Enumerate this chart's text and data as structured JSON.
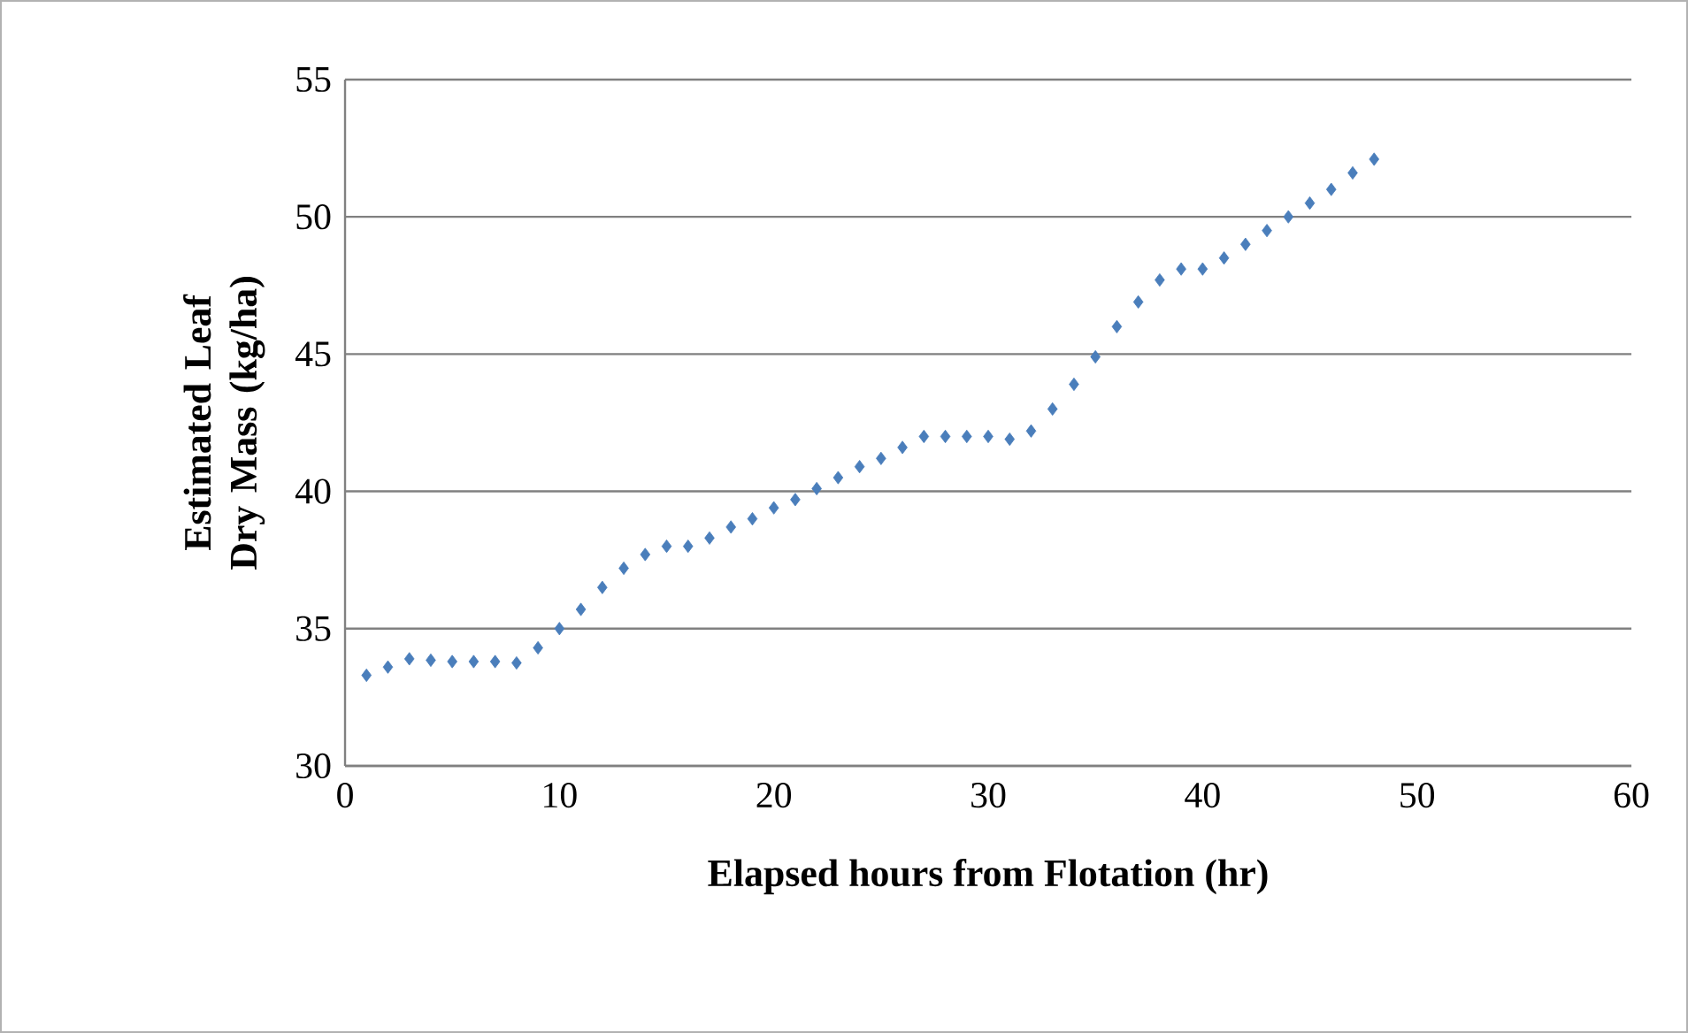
{
  "chart_data": {
    "type": "scatter",
    "xlabel": "Elapsed hours from Flotation (hr)",
    "ylabel": "Estimated Leaf Dry Mass (kg/ha)",
    "x": [
      1,
      2,
      3,
      4,
      5,
      6,
      7,
      8,
      9,
      10,
      11,
      12,
      13,
      14,
      15,
      16,
      17,
      18,
      19,
      20,
      21,
      22,
      23,
      24,
      25,
      26,
      27,
      28,
      29,
      30,
      31,
      32,
      33,
      34,
      35,
      36,
      37,
      38,
      39,
      40,
      41,
      42,
      43,
      44,
      45,
      46,
      47,
      48
    ],
    "series": [
      {
        "color": "#4a7ebb",
        "values": [
          33.3,
          33.6,
          33.9,
          33.85,
          33.8,
          33.8,
          33.8,
          33.75,
          34.3,
          35.0,
          35.7,
          36.5,
          37.2,
          37.7,
          38.0,
          38.0,
          38.3,
          38.7,
          39.0,
          39.4,
          39.7,
          40.1,
          40.5,
          40.9,
          41.2,
          41.6,
          42.0,
          42.0,
          42.0,
          42.0,
          41.9,
          42.2,
          43.0,
          43.9,
          44.9,
          46.0,
          46.9,
          47.7,
          48.1,
          48.1,
          48.5,
          49.0,
          49.5,
          50.0,
          50.5,
          51.0,
          51.6,
          52.1
        ]
      }
    ],
    "xlim": [
      0,
      60
    ],
    "ylim": [
      30,
      55
    ],
    "xticks": [
      0,
      10,
      20,
      30,
      40,
      50,
      60
    ],
    "yticks": [
      30,
      35,
      40,
      45,
      50,
      55
    ],
    "grid": "y",
    "legend": false,
    "marker": "diamond"
  }
}
